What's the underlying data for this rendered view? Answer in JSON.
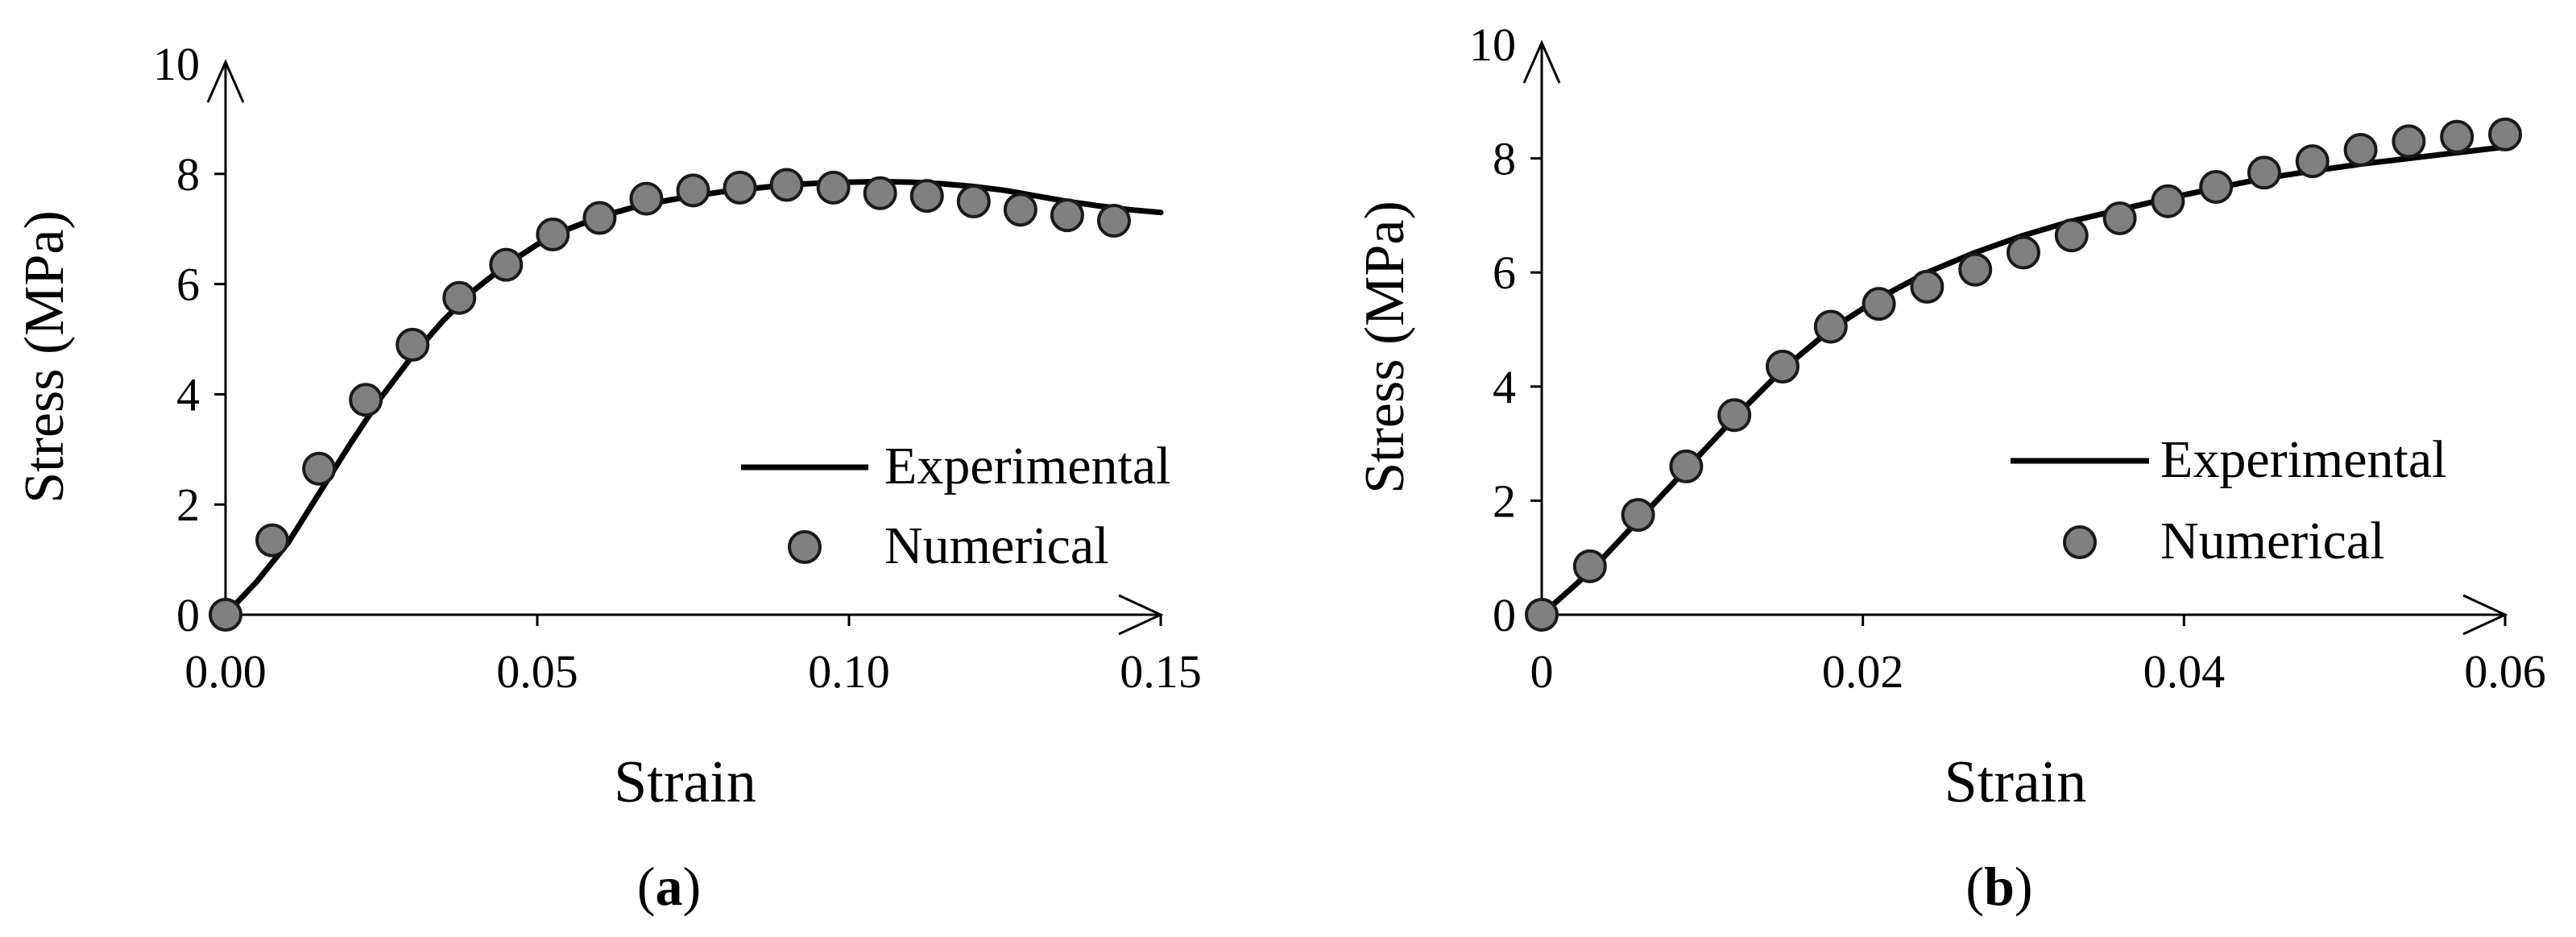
{
  "colors": {
    "axis": "#000000",
    "experimental_line": "#000000",
    "numerical_marker_fill": "#808080",
    "numerical_marker_stroke": "#1a1a1a",
    "background": "#ffffff"
  },
  "chart_data": [
    {
      "type": "line",
      "panel_label": "(a)",
      "panel_letter": "a",
      "xlabel": "Strain",
      "ylabel": "Stress (MPa)",
      "xlim": [
        0,
        0.15
      ],
      "ylim": [
        0,
        10
      ],
      "x_ticks": [
        0,
        0.05,
        0.1,
        0.15
      ],
      "x_tick_labels": [
        "0.00",
        "0.05",
        "0.10",
        "0.15"
      ],
      "y_ticks": [
        0,
        2,
        4,
        6,
        8,
        10
      ],
      "y_tick_labels": [
        "0",
        "2",
        "4",
        "6",
        "8",
        "10"
      ],
      "legend_position": "lower-right",
      "series": [
        {
          "name": "Experimental",
          "style": "line",
          "x": [
            0,
            0.005,
            0.01,
            0.015,
            0.02,
            0.025,
            0.03,
            0.035,
            0.04,
            0.045,
            0.05,
            0.055,
            0.06,
            0.065,
            0.07,
            0.075,
            0.08,
            0.085,
            0.09,
            0.095,
            0.1,
            0.105,
            0.11,
            0.115,
            0.12,
            0.125,
            0.13,
            0.135,
            0.14,
            0.145,
            0.15
          ],
          "y": [
            0,
            0.6,
            1.3,
            2.2,
            3.1,
            3.95,
            4.7,
            5.35,
            5.9,
            6.35,
            6.72,
            7.0,
            7.22,
            7.38,
            7.5,
            7.6,
            7.68,
            7.74,
            7.8,
            7.83,
            7.85,
            7.86,
            7.85,
            7.82,
            7.77,
            7.7,
            7.6,
            7.5,
            7.42,
            7.35,
            7.3
          ]
        },
        {
          "name": "Numerical",
          "style": "markers",
          "x": [
            0,
            0.0075,
            0.015,
            0.0225,
            0.03,
            0.0375,
            0.045,
            0.0525,
            0.06,
            0.0675,
            0.075,
            0.0825,
            0.09,
            0.0975,
            0.105,
            0.1125,
            0.12,
            0.1275,
            0.135,
            0.1425
          ],
          "y": [
            0,
            1.35,
            2.65,
            3.9,
            4.9,
            5.75,
            6.35,
            6.9,
            7.2,
            7.55,
            7.7,
            7.75,
            7.8,
            7.75,
            7.65,
            7.6,
            7.5,
            7.35,
            7.25,
            7.15
          ]
        }
      ]
    },
    {
      "type": "line",
      "panel_label": "(b)",
      "panel_letter": "b",
      "xlabel": "Strain",
      "ylabel": "Stress (MPa)",
      "xlim": [
        0,
        0.06
      ],
      "ylim": [
        0,
        10
      ],
      "x_ticks": [
        0,
        0.02,
        0.04,
        0.06
      ],
      "x_tick_labels": [
        "0",
        "0.02",
        "0.04",
        "0.06"
      ],
      "y_ticks": [
        0,
        2,
        4,
        6,
        8,
        10
      ],
      "y_tick_labels": [
        "0",
        "2",
        "4",
        "6",
        "8",
        "10"
      ],
      "legend_position": "lower-right",
      "series": [
        {
          "name": "Experimental",
          "style": "line",
          "x": [
            0,
            0.003,
            0.006,
            0.009,
            0.012,
            0.015,
            0.018,
            0.021,
            0.024,
            0.027,
            0.03,
            0.033,
            0.036,
            0.039,
            0.042,
            0.045,
            0.048,
            0.051,
            0.054,
            0.057,
            0.06
          ],
          "y": [
            0,
            0.75,
            1.65,
            2.55,
            3.45,
            4.3,
            5.0,
            5.55,
            6.0,
            6.35,
            6.65,
            6.9,
            7.1,
            7.3,
            7.48,
            7.65,
            7.78,
            7.9,
            8.0,
            8.1,
            8.2
          ]
        },
        {
          "name": "Numerical",
          "style": "markers",
          "x": [
            0,
            0.003,
            0.006,
            0.009,
            0.012,
            0.015,
            0.018,
            0.021,
            0.024,
            0.027,
            0.03,
            0.033,
            0.036,
            0.039,
            0.042,
            0.045,
            0.048,
            0.051,
            0.054,
            0.057,
            0.06
          ],
          "y": [
            0,
            0.85,
            1.75,
            2.6,
            3.5,
            4.35,
            5.05,
            5.45,
            5.75,
            6.05,
            6.35,
            6.65,
            6.95,
            7.25,
            7.5,
            7.75,
            7.95,
            8.15,
            8.3,
            8.38,
            8.42
          ]
        }
      ]
    }
  ]
}
